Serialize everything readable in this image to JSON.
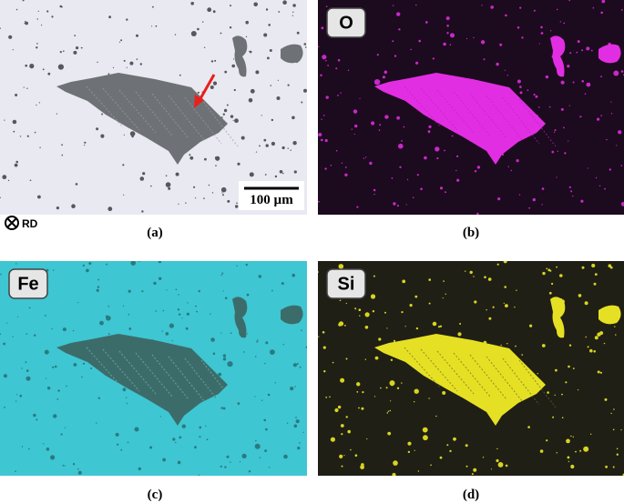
{
  "panels": [
    {
      "caption": "(a)",
      "scale_bar": "100 µm"
    },
    {
      "caption": "(b)",
      "element": "O"
    },
    {
      "caption": "(c)",
      "element": "Fe"
    },
    {
      "caption": "(d)",
      "element": "Si"
    }
  ],
  "direction_note": "RD"
}
